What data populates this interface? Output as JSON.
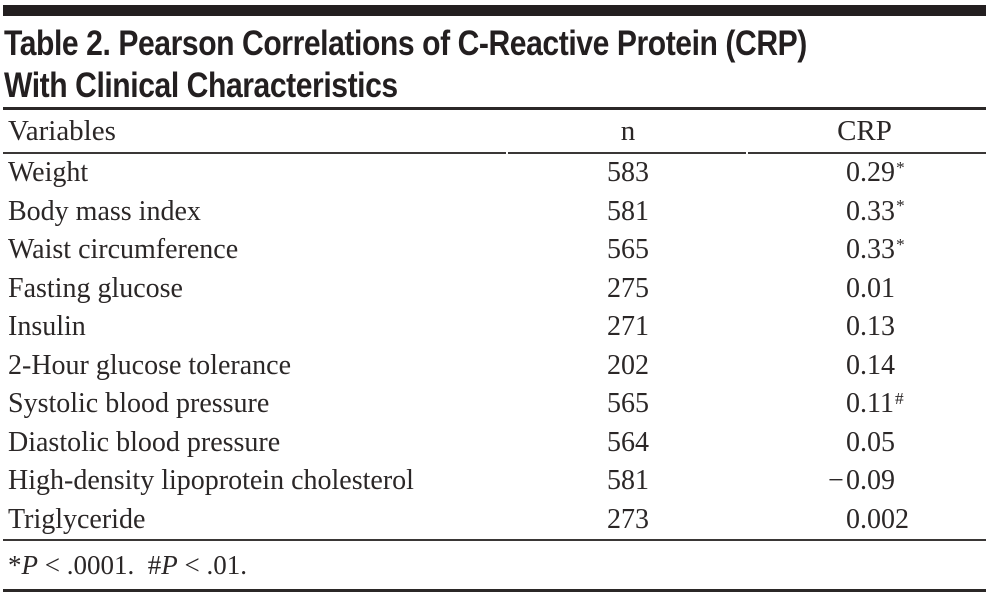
{
  "table": {
    "title_line1": "Table 2. Pearson Correlations of C-Reactive Protein (CRP)",
    "title_line2": "With Clinical Characteristics",
    "columns": {
      "variables": "Variables",
      "n": "n",
      "crp": "CRP"
    },
    "rows": [
      {
        "variable": "Weight",
        "n": "583",
        "crp": "0.29*"
      },
      {
        "variable": "Body mass index",
        "n": "581",
        "crp": "0.33*"
      },
      {
        "variable": "Waist circumference",
        "n": "565",
        "crp": "0.33*"
      },
      {
        "variable": "Fasting glucose",
        "n": "275",
        "crp": "0.01"
      },
      {
        "variable": "Insulin",
        "n": "271",
        "crp": "0.13"
      },
      {
        "variable": "2-Hour glucose tolerance",
        "n": "202",
        "crp": "0.14"
      },
      {
        "variable": "Systolic blood pressure",
        "n": "565",
        "crp": "0.11#"
      },
      {
        "variable": "Diastolic blood pressure",
        "n": "564",
        "crp": "0.05"
      },
      {
        "variable": "High-density lipoprotein cholesterol",
        "n": "581",
        "crp": "−0.09"
      },
      {
        "variable": "Triglyceride",
        "n": "273",
        "crp": "0.002"
      }
    ],
    "footnote": {
      "segments": [
        {
          "text": "*",
          "italic": false
        },
        {
          "text": "P",
          "italic": true
        },
        {
          "text": " < .0001.  ",
          "italic": false
        },
        {
          "text": "#",
          "italic": false
        },
        {
          "text": "P",
          "italic": true
        },
        {
          "text": " < .01.",
          "italic": false
        }
      ]
    }
  },
  "colors": {
    "ink": "#231f20",
    "rule_thin": "#3a3736",
    "background": "#ffffff"
  }
}
